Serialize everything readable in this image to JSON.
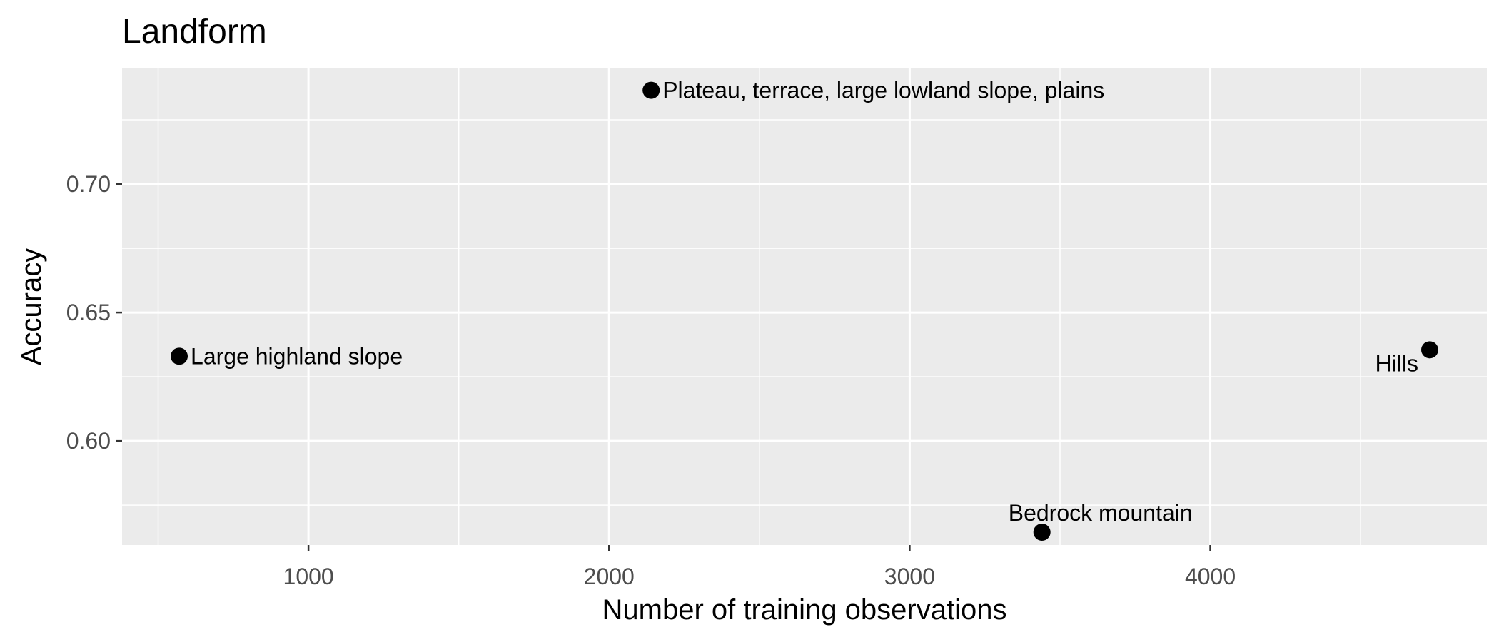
{
  "chart_data": {
    "type": "scatter",
    "title": "Landform",
    "xlabel": "Number of training observations",
    "ylabel": "Accuracy",
    "xlim": [
      380,
      4920
    ],
    "ylim": [
      0.5595,
      0.745
    ],
    "x_ticks": [
      1000,
      2000,
      3000,
      4000
    ],
    "x_tick_labels": [
      "1000",
      "2000",
      "3000",
      "4000"
    ],
    "x_minor_ticks": [
      500,
      1500,
      2500,
      3500,
      4500
    ],
    "y_ticks": [
      0.6,
      0.65,
      0.7
    ],
    "y_tick_labels": [
      "0.60",
      "0.65",
      "0.70"
    ],
    "y_minor_ticks": [
      0.575,
      0.625,
      0.675,
      0.725
    ],
    "grid": true,
    "legend": "none",
    "colors": {
      "panel": "#ebebeb",
      "grid": "#ffffff",
      "point": "#000000",
      "tick_text": "#4d4d4d",
      "text": "#000000"
    },
    "points": [
      {
        "label": "Large highland slope",
        "x": 570,
        "y": 0.633,
        "label_side": "right"
      },
      {
        "label": "Plateau, terrace, large lowland slope, plains",
        "x": 2140,
        "y": 0.7365,
        "label_side": "right"
      },
      {
        "label": "Bedrock mountain",
        "x": 3440,
        "y": 0.5645,
        "label_side": "above"
      },
      {
        "label": "Hills",
        "x": 4730,
        "y": 0.6355,
        "label_side": "below-left"
      }
    ]
  }
}
